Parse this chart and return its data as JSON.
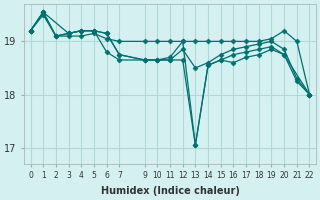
{
  "xlabel": "Humidex (Indice chaleur)",
  "ylabel": "",
  "background_color": "#d4f0f0",
  "grid_color": "#b0d8d8",
  "line_color": "#007070",
  "xlim": [
    -0.5,
    22.5
  ],
  "ylim": [
    16.7,
    19.7
  ],
  "yticks": [
    17,
    18,
    19
  ],
  "xticks": [
    0,
    1,
    2,
    3,
    4,
    5,
    6,
    7,
    9,
    10,
    11,
    12,
    13,
    14,
    15,
    16,
    17,
    18,
    19,
    20,
    21,
    22
  ],
  "series": [
    {
      "x": [
        0,
        1,
        2,
        3,
        4,
        5,
        6,
        7,
        9,
        10,
        11,
        12,
        13,
        14,
        15,
        16,
        17,
        18,
        19,
        20,
        21,
        22
      ],
      "y": [
        19.2,
        19.5,
        19.1,
        19.1,
        19.1,
        19.15,
        19.05,
        19.0,
        19.0,
        19.0,
        19.0,
        19.0,
        19.0,
        19.0,
        19.0,
        19.0,
        19.0,
        19.0,
        19.05,
        19.2,
        19.0,
        18.0
      ]
    },
    {
      "x": [
        0,
        1,
        2,
        3,
        4,
        5,
        6,
        7,
        9,
        10,
        11,
        12,
        13,
        14,
        15,
        16,
        17,
        18,
        19,
        20,
        21,
        22
      ],
      "y": [
        19.2,
        19.55,
        19.1,
        19.15,
        19.2,
        19.2,
        19.15,
        18.75,
        18.65,
        18.65,
        18.65,
        18.85,
        18.5,
        18.6,
        18.75,
        18.85,
        18.9,
        18.95,
        19.0,
        18.85,
        18.3,
        18.0
      ]
    },
    {
      "x": [
        0,
        1,
        2,
        3,
        4,
        5,
        6,
        7,
        9,
        10,
        11,
        12,
        13,
        14,
        15,
        16,
        17,
        18,
        19,
        20,
        21,
        22
      ],
      "y": [
        19.2,
        19.55,
        19.1,
        19.15,
        19.2,
        19.2,
        18.8,
        18.65,
        18.65,
        18.65,
        18.7,
        19.0,
        17.05,
        18.55,
        18.65,
        18.75,
        18.8,
        18.85,
        18.9,
        18.75,
        18.25,
        18.0
      ]
    },
    {
      "x": [
        0,
        1,
        3,
        4,
        5,
        6,
        7,
        9,
        10,
        11,
        12,
        13,
        14,
        15,
        16,
        17,
        18,
        19,
        20,
        22
      ],
      "y": [
        19.2,
        19.55,
        19.15,
        19.2,
        19.2,
        19.15,
        18.75,
        18.65,
        18.65,
        18.65,
        18.65,
        17.05,
        18.55,
        18.65,
        18.6,
        18.7,
        18.75,
        18.85,
        18.75,
        18.0
      ]
    }
  ]
}
